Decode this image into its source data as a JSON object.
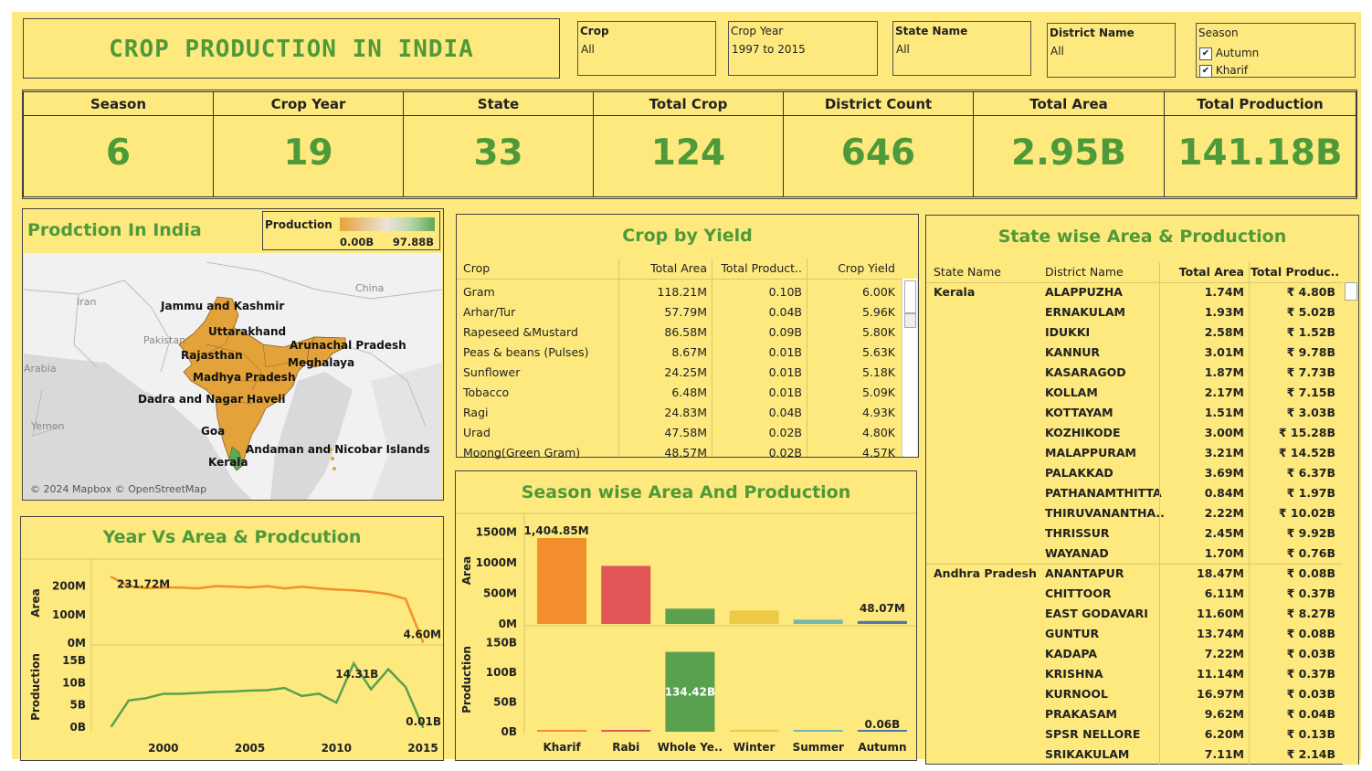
{
  "header": {
    "title": "CROP PRODUCTION IN INDIA"
  },
  "filters": {
    "crop": {
      "label": "Crop",
      "value": "All"
    },
    "crop_year": {
      "label": "Crop Year",
      "value": "1997 to 2015"
    },
    "state_name": {
      "label": "State Name",
      "value": "All"
    },
    "district_name": {
      "label": "District Name",
      "value": "All"
    },
    "season": {
      "label": "Season",
      "options": [
        "Autumn",
        "Kharif"
      ]
    }
  },
  "kpis": [
    {
      "label": "Season",
      "value": "6"
    },
    {
      "label": "Crop Year",
      "value": "19"
    },
    {
      "label": "State",
      "value": "33"
    },
    {
      "label": "Total Crop",
      "value": "124"
    },
    {
      "label": "District Count",
      "value": "646"
    },
    {
      "label": "Total Area",
      "value": "2.95B"
    },
    {
      "label": "Total Production",
      "value": "141.18B"
    }
  ],
  "map": {
    "title": "Prodction In India",
    "legend_title": "Production",
    "legend_min": "0.00B",
    "legend_max": "97.88B",
    "legend_colors": [
      "#e3a33a",
      "#e8c48a",
      "#ede4d8",
      "#b5d6a5",
      "#5fa855"
    ],
    "countries": [
      "Iran",
      "China",
      "Pakistan",
      "Arabia",
      "Yemen"
    ],
    "state_labels": [
      "Jammu and Kashmir",
      "Uttarakhand",
      "Rajasthan",
      "Arunachal Pradesh",
      "Madhya Pradesh",
      "Meghalaya",
      "Dadra and Nagar Haveli",
      "Goa",
      "Andaman and Nicobar Islands",
      "Kerala"
    ],
    "attribution": "© 2024 Mapbox © OpenStreetMap"
  },
  "crop_yield": {
    "title": "Crop by Yield",
    "columns": [
      "Crop",
      "Total Area",
      "Total Product..",
      "Crop Yield"
    ],
    "rows": [
      [
        "Gram",
        "118.21M",
        "0.10B",
        "6.00K"
      ],
      [
        "Arhar/Tur",
        "57.79M",
        "0.04B",
        "5.96K"
      ],
      [
        "Rapeseed &Mustard",
        "86.58M",
        "0.09B",
        "5.80K"
      ],
      [
        "Peas & beans (Pulses)",
        "8.67M",
        "0.01B",
        "5.63K"
      ],
      [
        "Sunflower",
        "24.25M",
        "0.01B",
        "5.18K"
      ],
      [
        "Tobacco",
        "6.48M",
        "0.01B",
        "5.09K"
      ],
      [
        "Ragi",
        "24.83M",
        "0.04B",
        "4.93K"
      ],
      [
        "Urad",
        "47.58M",
        "0.02B",
        "4.80K"
      ],
      [
        "Moong(Green Gram)",
        "48.57M",
        "0.02B",
        "4.57K"
      ]
    ]
  },
  "state_table": {
    "title": "State wise Area & Production",
    "columns": [
      "State Name",
      "District Name",
      "Total Area",
      "Total Produc.."
    ],
    "groups": [
      {
        "state": "Kerala",
        "rows": [
          [
            "ALAPPUZHA",
            "1.74M",
            "₹ 4.80B"
          ],
          [
            "ERNAKULAM",
            "1.93M",
            "₹ 5.02B"
          ],
          [
            "IDUKKI",
            "2.58M",
            "₹ 1.52B"
          ],
          [
            "KANNUR",
            "3.01M",
            "₹ 9.78B"
          ],
          [
            "KASARAGOD",
            "1.87M",
            "₹ 7.73B"
          ],
          [
            "KOLLAM",
            "2.17M",
            "₹ 7.15B"
          ],
          [
            "KOTTAYAM",
            "1.51M",
            "₹ 3.03B"
          ],
          [
            "KOZHIKODE",
            "3.00M",
            "₹ 15.28B"
          ],
          [
            "MALAPPURAM",
            "3.21M",
            "₹ 14.52B"
          ],
          [
            "PALAKKAD",
            "3.69M",
            "₹ 6.37B"
          ],
          [
            "PATHANAMTHITTA",
            "0.84M",
            "₹ 1.97B"
          ],
          [
            "THIRUVANANTHA..",
            "2.22M",
            "₹ 10.02B"
          ],
          [
            "THRISSUR",
            "2.45M",
            "₹ 9.92B"
          ],
          [
            "WAYANAD",
            "1.70M",
            "₹ 0.76B"
          ]
        ]
      },
      {
        "state": "Andhra Pradesh",
        "rows": [
          [
            "ANANTAPUR",
            "18.47M",
            "₹ 0.08B"
          ],
          [
            "CHITTOOR",
            "6.11M",
            "₹ 0.37B"
          ],
          [
            "EAST GODAVARI",
            "11.60M",
            "₹ 8.27B"
          ],
          [
            "GUNTUR",
            "13.74M",
            "₹ 0.08B"
          ],
          [
            "KADAPA",
            "7.22M",
            "₹ 0.03B"
          ],
          [
            "KRISHNA",
            "11.14M",
            "₹ 0.37B"
          ],
          [
            "KURNOOL",
            "16.97M",
            "₹ 0.03B"
          ],
          [
            "PRAKASAM",
            "9.62M",
            "₹ 0.04B"
          ],
          [
            "SPSR NELLORE",
            "6.20M",
            "₹ 0.13B"
          ],
          [
            "SRIKAKULAM",
            "7.11M",
            "₹ 2.14B"
          ]
        ]
      }
    ]
  },
  "chart_data": [
    {
      "type": "line",
      "title": "Year Vs Area & Prodcution",
      "x": [
        1997,
        1998,
        1999,
        2000,
        2001,
        2002,
        2003,
        2004,
        2005,
        2006,
        2007,
        2008,
        2009,
        2010,
        2011,
        2012,
        2013,
        2014,
        2015
      ],
      "x_ticks": [
        "2000",
        "2005",
        "2010",
        "2015"
      ],
      "series": [
        {
          "name": "Area",
          "unit": "M",
          "values": [
            231.72,
            200,
            193,
            195,
            195,
            192,
            200,
            198,
            195,
            200,
            192,
            198,
            192,
            188,
            185,
            180,
            172,
            155,
            4.6
          ],
          "ticks": [
            "0M",
            "100M",
            "200M"
          ],
          "ylim": [
            0,
            250
          ],
          "labels": [
            "231.72M",
            "4.60M"
          ],
          "color": "#f28e2b"
        },
        {
          "name": "Production",
          "unit": "B",
          "values": [
            0.2,
            6,
            6.5,
            7.5,
            7.5,
            7.7,
            7.9,
            8,
            8.2,
            8.3,
            8.8,
            7,
            7.5,
            5.5,
            14.31,
            8.5,
            13,
            9,
            0.01
          ],
          "ticks": [
            "0B",
            "5B",
            "10B",
            "15B"
          ],
          "ylim": [
            0,
            16
          ],
          "labels": [
            "14.31B",
            "0.01B"
          ],
          "color": "#59a14f"
        }
      ]
    },
    {
      "type": "bar",
      "title": "Season wise Area And Production",
      "categories": [
        "Kharif",
        "Rabi",
        "Whole Ye..",
        "Winter",
        "Summer",
        "Autumn"
      ],
      "colors": [
        "#f28e2b",
        "#e15759",
        "#59a14f",
        "#edc948",
        "#76b7b2",
        "#4e79a7"
      ],
      "series": [
        {
          "name": "Area",
          "values": [
            1404.85,
            950,
            250,
            220,
            70,
            48.07
          ],
          "ticks": [
            "0M",
            "500M",
            "1000M",
            "1500M"
          ],
          "ylim": [
            0,
            1600
          ],
          "labels": [
            "1,404.85M",
            "48.07M"
          ]
        },
        {
          "name": "Production",
          "values": [
            2,
            0.5,
            134.42,
            0.3,
            0.2,
            0.06
          ],
          "ticks": [
            "0B",
            "50B",
            "100B",
            "150B"
          ],
          "ylim": [
            0,
            160
          ],
          "labels": [
            "134.42B",
            "0.06B"
          ]
        }
      ]
    }
  ]
}
